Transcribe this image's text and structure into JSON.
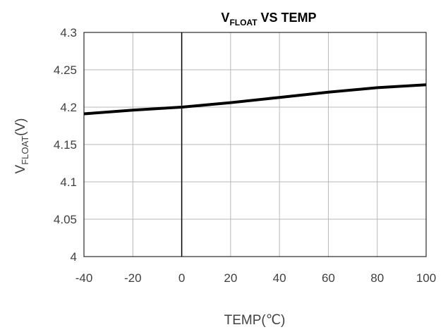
{
  "chart_data": {
    "type": "line",
    "title": {
      "main": "V",
      "sub": "FLOAT",
      "rest": " VS TEMP"
    },
    "xlabel": "TEMP(℃)",
    "ylabel": {
      "main": "V",
      "sub": "FLOAT",
      "rest": "(V)"
    },
    "xlim": [
      -40,
      100
    ],
    "ylim": [
      4,
      4.3
    ],
    "x_ticks": [
      "-40",
      "-20",
      "0",
      "20",
      "40",
      "60",
      "80",
      "100"
    ],
    "y_ticks": [
      "4",
      "4.05",
      "4.1",
      "4.15",
      "4.2",
      "4.25",
      "4.3"
    ],
    "grid": true,
    "series": [
      {
        "x": [
          -40,
          -20,
          0,
          20,
          40,
          60,
          80,
          100
        ],
        "y": [
          4.191,
          4.196,
          4.2,
          4.206,
          4.213,
          4.22,
          4.226,
          4.23
        ]
      }
    ],
    "colors": {
      "line": "#000000",
      "grid": "#b8b8b8",
      "frame": "#000000"
    }
  }
}
